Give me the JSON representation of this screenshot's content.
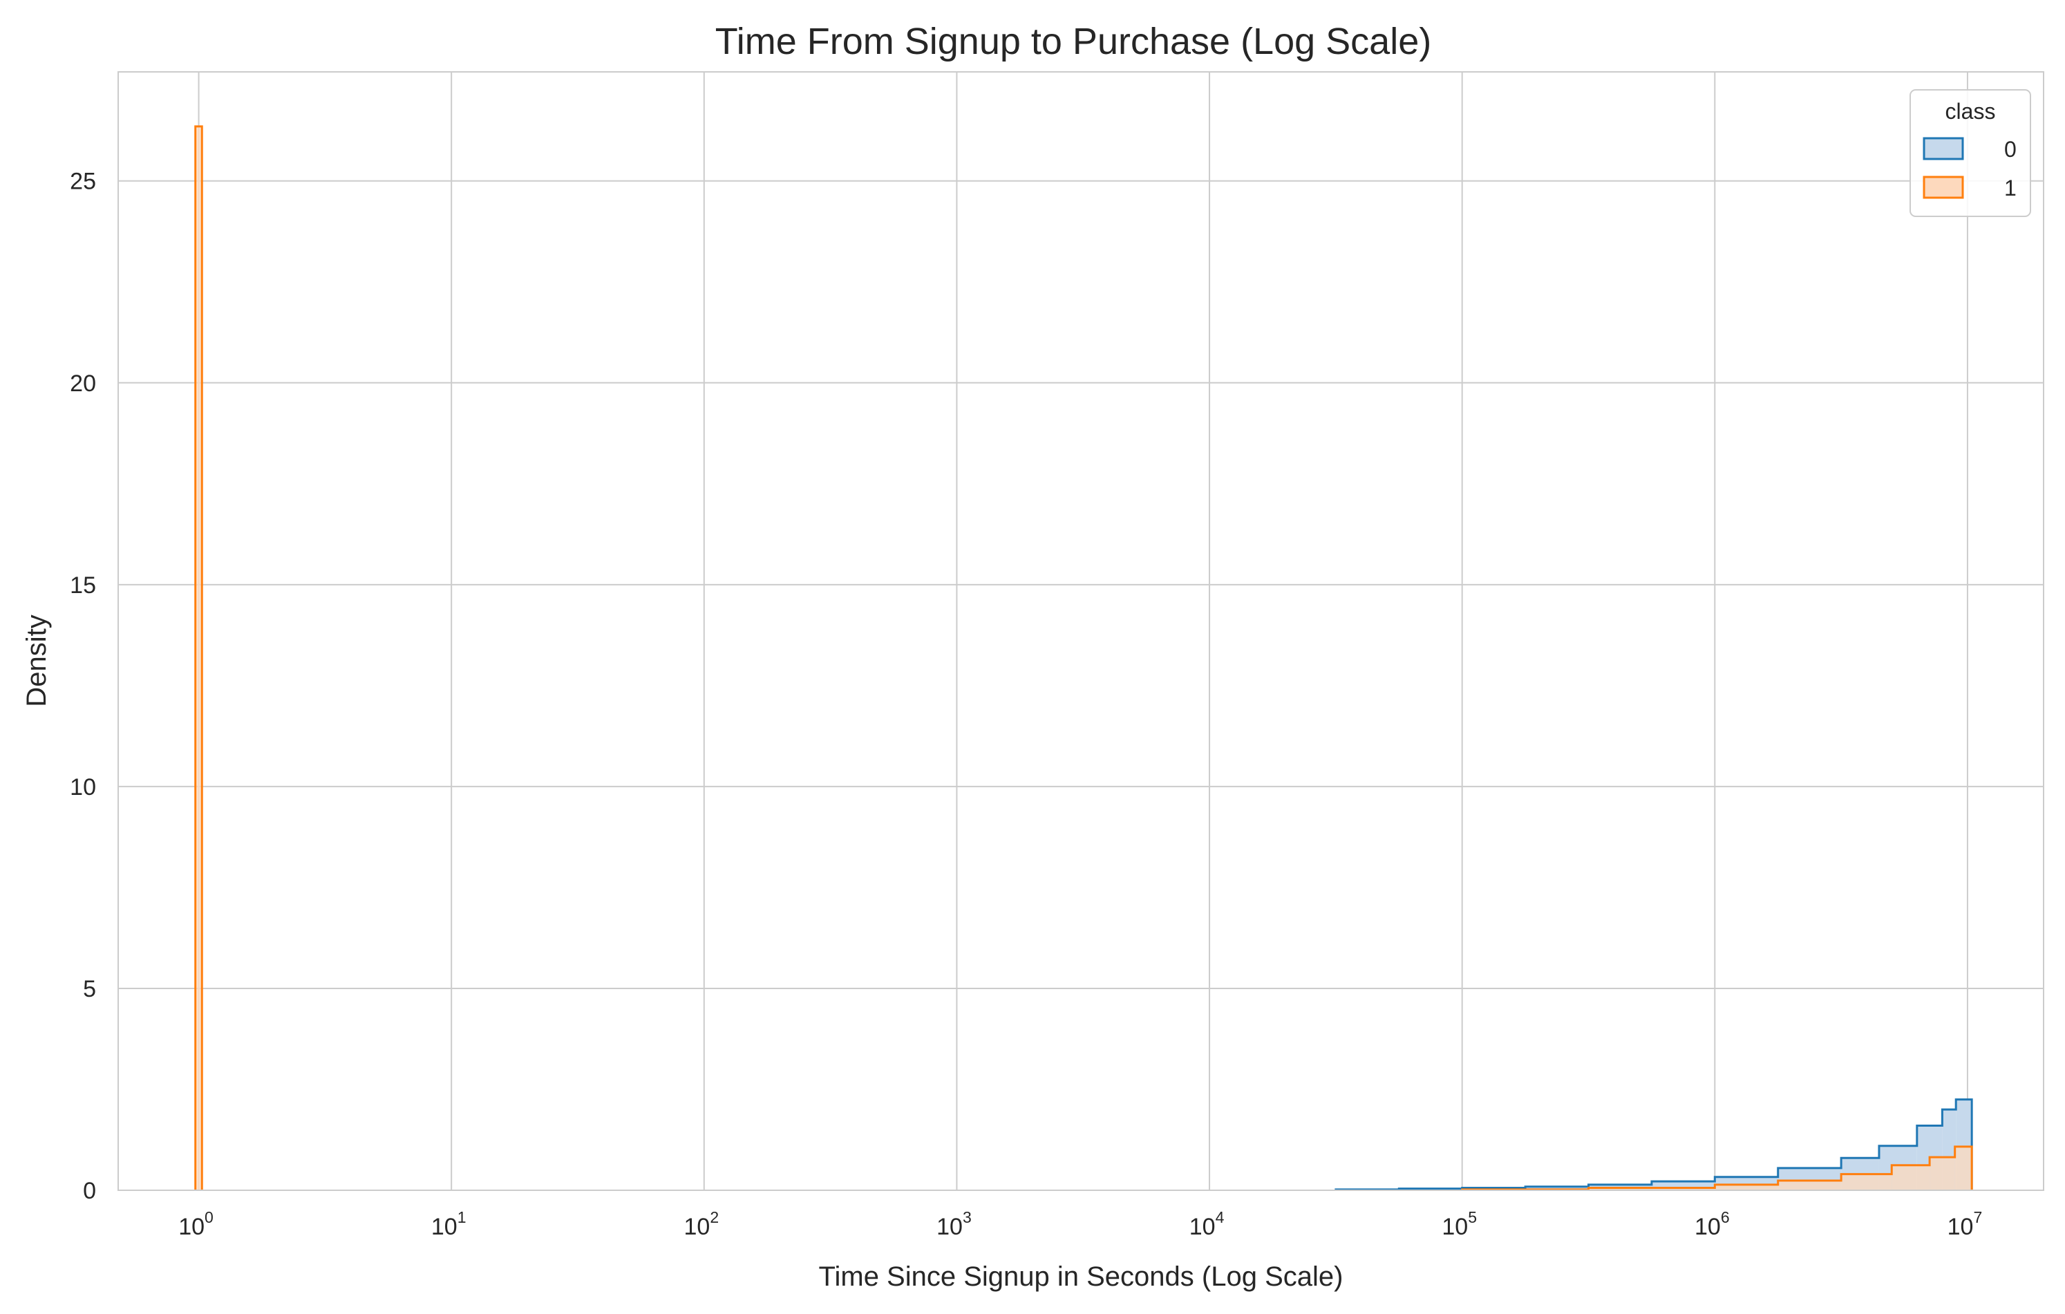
{
  "chart_data": {
    "type": "histogram",
    "title": "Time From Signup to Purchase (Log Scale)",
    "xlabel": "Time Since Signup in Seconds (Log Scale)",
    "ylabel": "Density",
    "xscale": "log",
    "xlim": [
      0.48,
      20
    ],
    "ylim": [
      0,
      27.7
    ],
    "x_ticks": [
      {
        "base": "10",
        "exp": "0",
        "value": 1
      },
      {
        "base": "10",
        "exp": "1",
        "value": 10
      },
      {
        "base": "10",
        "exp": "2",
        "value": 100
      },
      {
        "base": "10",
        "exp": "3",
        "value": 1000
      },
      {
        "base": "10",
        "exp": "4",
        "value": 10000
      },
      {
        "base": "10",
        "exp": "5",
        "value": 100000
      },
      {
        "base": "10",
        "exp": "6",
        "value": 1000000
      },
      {
        "base": "10",
        "exp": "7",
        "value": 10000000
      }
    ],
    "y_ticks": [
      "0",
      "5",
      "10",
      "15",
      "20",
      "25"
    ],
    "grid": true,
    "legend": {
      "title": "class",
      "placement": "top-right"
    },
    "series": [
      {
        "name": "0",
        "color": "#1f77b4",
        "fill": "#c6d9ec",
        "bins": [
          {
            "x0": 31623,
            "x1": 56234,
            "y": 0.02
          },
          {
            "x0": 56234,
            "x1": 100000,
            "y": 0.04
          },
          {
            "x0": 100000,
            "x1": 177828,
            "y": 0.06
          },
          {
            "x0": 177828,
            "x1": 316228,
            "y": 0.09
          },
          {
            "x0": 316228,
            "x1": 562341,
            "y": 0.14
          },
          {
            "x0": 562341,
            "x1": 1000000,
            "y": 0.22
          },
          {
            "x0": 1000000,
            "x1": 1778279,
            "y": 0.33
          },
          {
            "x0": 1778279,
            "x1": 3162278,
            "y": 0.55
          },
          {
            "x0": 3162278,
            "x1": 4466836,
            "y": 0.8
          },
          {
            "x0": 4466836,
            "x1": 6309573,
            "y": 1.1
          },
          {
            "x0": 6309573,
            "x1": 7943282,
            "y": 1.6
          },
          {
            "x0": 7943282,
            "x1": 9000000,
            "y": 2.0
          },
          {
            "x0": 9000000,
            "x1": 10400000,
            "y": 2.25
          }
        ]
      },
      {
        "name": "1",
        "color": "#ff7f0e",
        "fill": "#fdd9bd",
        "bins": [
          {
            "x0": 0.97,
            "x1": 1.03,
            "y": 26.35
          },
          {
            "x0": 100000,
            "x1": 316228,
            "y": 0.02
          },
          {
            "x0": 316228,
            "x1": 1000000,
            "y": 0.06
          },
          {
            "x0": 1000000,
            "x1": 1778279,
            "y": 0.14
          },
          {
            "x0": 1778279,
            "x1": 3162278,
            "y": 0.24
          },
          {
            "x0": 3162278,
            "x1": 5011872,
            "y": 0.4
          },
          {
            "x0": 5011872,
            "x1": 7079458,
            "y": 0.62
          },
          {
            "x0": 7079458,
            "x1": 8912509,
            "y": 0.82
          },
          {
            "x0": 8912509,
            "x1": 10400000,
            "y": 1.08
          }
        ]
      }
    ]
  }
}
